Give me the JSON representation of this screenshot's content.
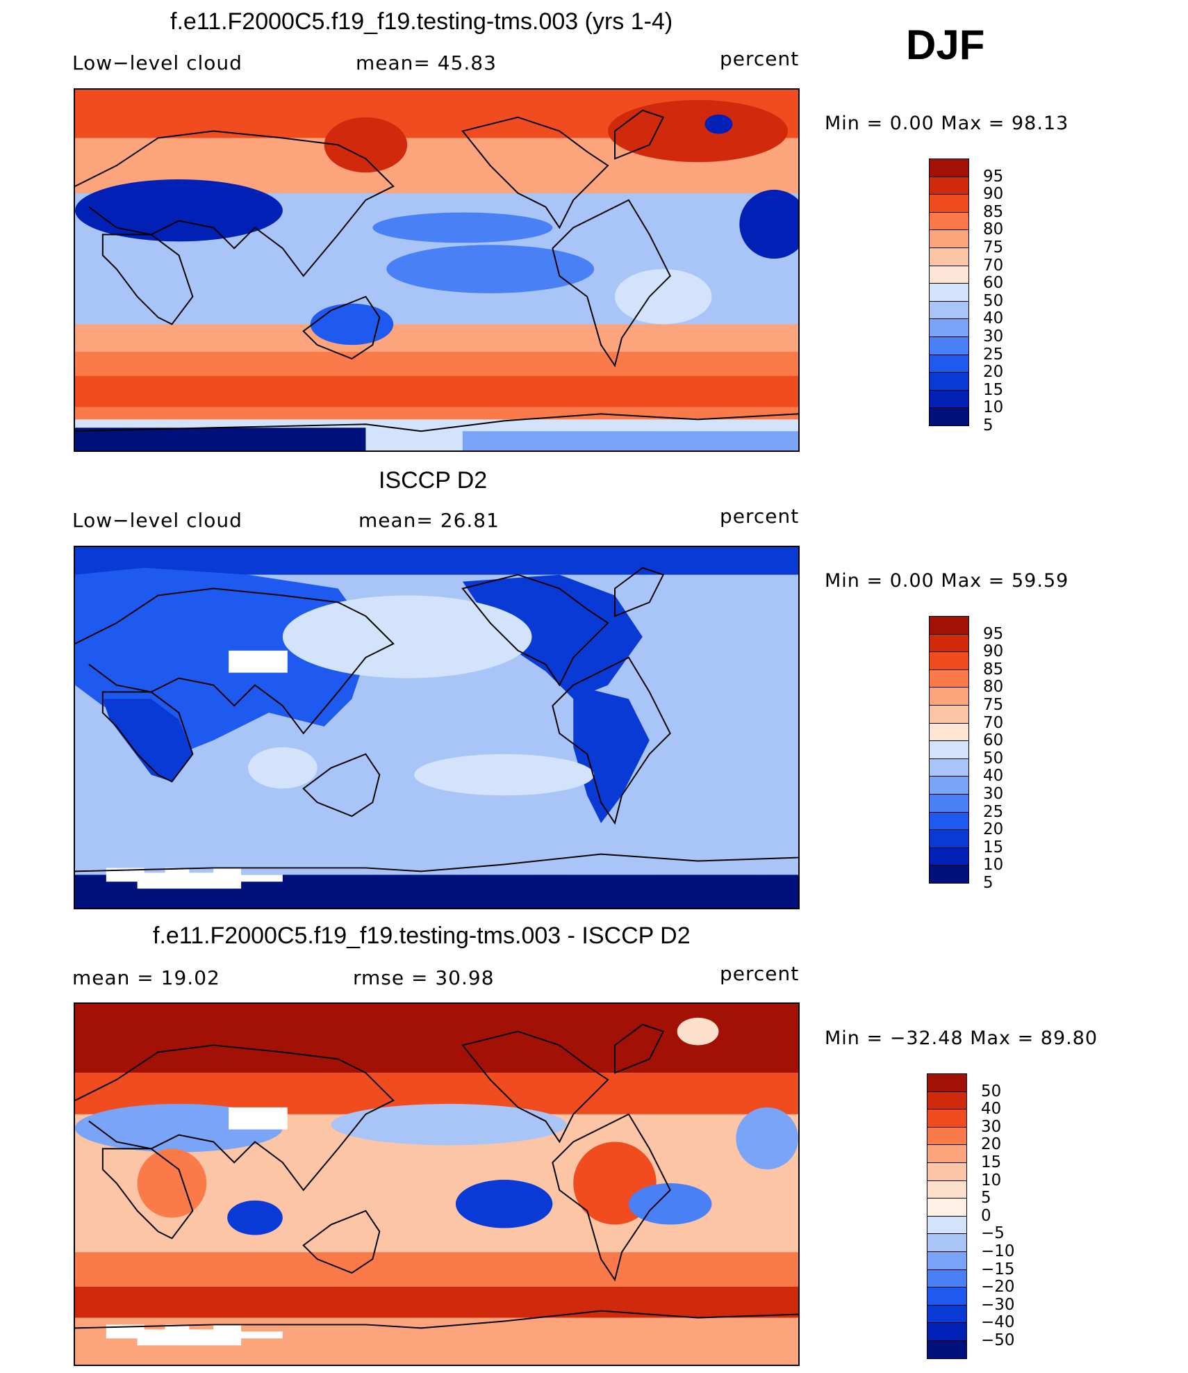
{
  "header": {
    "season": "DJF"
  },
  "colors": {
    "abs_scale": [
      "#00107d",
      "#0020b6",
      "#0a3ad6",
      "#1e5af0",
      "#4a80f5",
      "#7aa4f7",
      "#a9c5f8",
      "#d2e3fb",
      "#fde6d6",
      "#fcc5a6",
      "#fca47b",
      "#fb7a4a",
      "#f04c1f",
      "#d0290c",
      "#a31006"
    ],
    "diff_scale": [
      "#00107d",
      "#0020b6",
      "#0a3ad6",
      "#1e5af0",
      "#4a80f5",
      "#7aa4f7",
      "#a9c5f8",
      "#d2e3fb",
      "#fff0e6",
      "#fde0cc",
      "#fcc5a6",
      "#fca47b",
      "#fb7a4a",
      "#f04c1f",
      "#d0290c",
      "#a31006"
    ],
    "land_outline": "#000000",
    "missing": "#ffffff"
  },
  "panels": [
    {
      "title": "f.e11.F2000C5.f19_f19.testing-tms.003 (yrs 1-4)",
      "left_label": "Low−level cloud",
      "center_label": "mean=   45.83",
      "units": "percent",
      "minmax": "Min =     0.00 Max =    98.13",
      "colorbar_labels": [
        "95",
        "90",
        "85",
        "80",
        "75",
        "70",
        "60",
        "50",
        "40",
        "30",
        "25",
        "20",
        "15",
        "10",
        "5"
      ]
    },
    {
      "title": "ISCCP D2",
      "left_label": "Low−level cloud",
      "center_label": "mean=   26.81",
      "units": "percent",
      "minmax": "Min =     0.00 Max =    59.59",
      "colorbar_labels": [
        "95",
        "90",
        "85",
        "80",
        "75",
        "70",
        "60",
        "50",
        "40",
        "30",
        "25",
        "20",
        "15",
        "10",
        "5"
      ]
    },
    {
      "title": "f.e11.F2000C5.f19_f19.testing-tms.003 - ISCCP D2",
      "left_label": "mean =    19.02",
      "center_label": "rmse =    30.98",
      "units": "percent",
      "minmax": "Min = −32.48 Max =   89.80",
      "colorbar_labels": [
        "50",
        "40",
        "30",
        "20",
        "15",
        "10",
        "5",
        "0",
        "−5",
        "−10",
        "−15",
        "−20",
        "−30",
        "−40",
        "−50"
      ]
    }
  ],
  "chart_data": [
    {
      "type": "heatmap",
      "title": "f.e11.F2000C5.f19_f19.testing-tms.003 (yrs 1-4)",
      "variable": "Low-level cloud",
      "units": "percent",
      "season": "DJF",
      "mean": 45.83,
      "min": 0.0,
      "max": 98.13,
      "levels": [
        5,
        10,
        15,
        20,
        25,
        30,
        40,
        50,
        60,
        70,
        75,
        80,
        85,
        90,
        95
      ],
      "xlim": [
        0,
        360
      ],
      "ylim": [
        -90,
        90
      ]
    },
    {
      "type": "heatmap",
      "title": "ISCCP D2",
      "variable": "Low-level cloud",
      "units": "percent",
      "season": "DJF",
      "mean": 26.81,
      "min": 0.0,
      "max": 59.59,
      "levels": [
        5,
        10,
        15,
        20,
        25,
        30,
        40,
        50,
        60,
        70,
        75,
        80,
        85,
        90,
        95
      ],
      "xlim": [
        0,
        360
      ],
      "ylim": [
        -90,
        90
      ]
    },
    {
      "type": "heatmap",
      "title": "f.e11.F2000C5.f19_f19.testing-tms.003 - ISCCP D2",
      "units": "percent",
      "season": "DJF",
      "mean": 19.02,
      "rmse": 30.98,
      "min": -32.48,
      "max": 89.8,
      "levels": [
        -50,
        -40,
        -30,
        -20,
        -15,
        -10,
        -5,
        0,
        5,
        10,
        15,
        20,
        30,
        40,
        50
      ],
      "xlim": [
        0,
        360
      ],
      "ylim": [
        -90,
        90
      ]
    }
  ]
}
